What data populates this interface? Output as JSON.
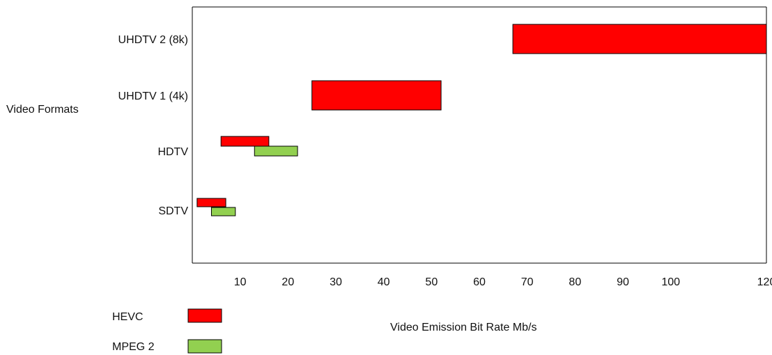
{
  "chart_data": {
    "type": "bar",
    "orientation": "horizontal-range",
    "ylabel": "Video Formats",
    "xlabel": "Video Emission Bit Rate Mb/s",
    "categories": [
      "UHDTV 2 (8k)",
      "UHDTV 1 (4k)",
      "HDTV",
      "SDTV"
    ],
    "x_ticks": [
      {
        "label": "10",
        "value": 10
      },
      {
        "label": "20",
        "value": 20
      },
      {
        "label": "30",
        "value": 30
      },
      {
        "label": "40",
        "value": 40
      },
      {
        "label": "50",
        "value": 50
      },
      {
        "label": "60",
        "value": 60
      },
      {
        "label": "70",
        "value": 70
      },
      {
        "label": "80",
        "value": 80
      },
      {
        "label": "90",
        "value": 90
      },
      {
        "label": "100",
        "value": 100
      },
      {
        "label": "120",
        "value": 120
      }
    ],
    "xlim": [
      0,
      120
    ],
    "series": [
      {
        "name": "HEVC",
        "color": "#ff0000",
        "ranges": [
          {
            "category": "UHDTV 2 (8k)",
            "start": 67,
            "end": 120
          },
          {
            "category": "UHDTV 1 (4k)",
            "start": 25,
            "end": 52
          },
          {
            "category": "HDTV",
            "start": 6,
            "end": 16
          },
          {
            "category": "SDTV",
            "start": 1,
            "end": 7
          }
        ]
      },
      {
        "name": "MPEG 2",
        "color": "#92d050",
        "ranges": [
          {
            "category": "HDTV",
            "start": 13,
            "end": 22
          },
          {
            "category": "SDTV",
            "start": 4,
            "end": 9
          }
        ]
      }
    ],
    "legend": [
      {
        "label": "HEVC",
        "color": "#ff0000"
      },
      {
        "label": "MPEG 2",
        "color": "#92d050"
      }
    ],
    "grid": false,
    "legend_position": "bottom-left"
  }
}
